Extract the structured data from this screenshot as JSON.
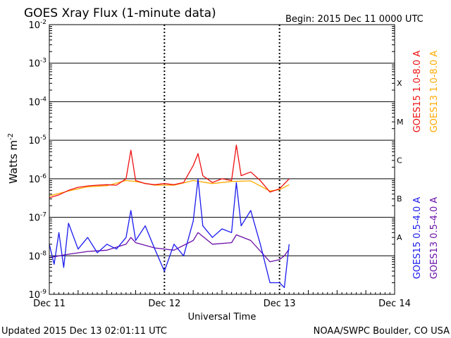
{
  "header": {
    "title": "GOES Xray Flux (1-minute data)",
    "begin": "Begin:  2015 Dec 11 0000 UTC"
  },
  "footer": {
    "updated": "Updated 2015 Dec 13 02:01:11 UTC",
    "credit": "NOAA/SWPC Boulder, CO USA"
  },
  "colors": {
    "goes15_long": "#ee1111",
    "goes13_long": "#ffaa00",
    "goes15_short": "#1a1aee",
    "goes13_short": "#6a0fa8"
  },
  "chart_data": {
    "type": "line",
    "xlabel": "Universal Time",
    "ylabel": "Watts m",
    "ylabel_superscript": "-2",
    "yscale": "log",
    "ylim": [
      1e-09,
      0.01
    ],
    "xlim": [
      "2015-12-11 00:00",
      "2015-12-14 00:00"
    ],
    "x_ticks": [
      "Dec 11",
      "Dec 12",
      "Dec 13",
      "Dec 14"
    ],
    "y_ticks": [
      {
        "base": "10",
        "exp": "-9"
      },
      {
        "base": "10",
        "exp": "-8"
      },
      {
        "base": "10",
        "exp": "-7"
      },
      {
        "base": "10",
        "exp": "-6"
      },
      {
        "base": "10",
        "exp": "-5"
      },
      {
        "base": "10",
        "exp": "-4"
      },
      {
        "base": "10",
        "exp": "-3"
      },
      {
        "base": "10",
        "exp": "-2"
      }
    ],
    "flare_classes": [
      "A",
      "B",
      "C",
      "M",
      "X"
    ],
    "grid": true,
    "legend": "right",
    "series": [
      {
        "name": "GOES15 1.0-8.0 A",
        "x": [
          "Dec 11 00:00",
          "Dec 11 02:00",
          "Dec 11 04:00",
          "Dec 11 06:00",
          "Dec 11 08:00",
          "Dec 11 10:00",
          "Dec 11 12:00",
          "Dec 11 14:00",
          "Dec 11 16:00",
          "Dec 11 17:00",
          "Dec 11 18:00",
          "Dec 11 20:00",
          "Dec 11 22:00",
          "Dec 12 00:00",
          "Dec 12 02:00",
          "Dec 12 04:00",
          "Dec 12 06:00",
          "Dec 12 07:00",
          "Dec 12 08:00",
          "Dec 12 10:00",
          "Dec 12 12:00",
          "Dec 12 14:00",
          "Dec 12 15:00",
          "Dec 12 16:00",
          "Dec 12 18:00",
          "Dec 12 20:00",
          "Dec 12 22:00",
          "Dec 13 00:00",
          "Dec 13 02:00"
        ],
        "values": [
          3.2e-07,
          3.8e-07,
          5e-07,
          6e-07,
          6.5e-07,
          6.8e-07,
          7e-07,
          6.8e-07,
          1e-06,
          5.5e-06,
          9e-07,
          7.5e-07,
          7e-07,
          7.5e-07,
          7e-07,
          8e-07,
          2.2e-06,
          4.5e-06,
          1.2e-06,
          8e-07,
          1e-06,
          9e-07,
          7.5e-06,
          1.2e-06,
          1.5e-06,
          9e-07,
          4.5e-07,
          5.5e-07,
          1e-06
        ]
      },
      {
        "name": "GOES13 1.0-8.0 A",
        "x": [
          "Dec 11 00:00",
          "Dec 11 04:00",
          "Dec 11 08:00",
          "Dec 11 12:00",
          "Dec 11 16:00",
          "Dec 11 18:00",
          "Dec 11 22:00",
          "Dec 12 02:00",
          "Dec 12 06:00",
          "Dec 12 10:00",
          "Dec 12 14:00",
          "Dec 12 18:00",
          "Dec 12 22:00",
          "Dec 13 00:00",
          "Dec 13 02:00"
        ],
        "values": [
          3.6e-07,
          4.8e-07,
          6.2e-07,
          6.6e-07,
          9e-07,
          8.5e-07,
          6.8e-07,
          6.8e-07,
          9e-07,
          7.5e-07,
          8.5e-07,
          8.8e-07,
          4.8e-07,
          5.2e-07,
          7e-07
        ]
      },
      {
        "name": "GOES15 0.5-4.0 A",
        "x": [
          "Dec 11 00:00",
          "Dec 11 01:00",
          "Dec 11 02:00",
          "Dec 11 03:00",
          "Dec 11 04:00",
          "Dec 11 06:00",
          "Dec 11 08:00",
          "Dec 11 10:00",
          "Dec 11 12:00",
          "Dec 11 14:00",
          "Dec 11 16:00",
          "Dec 11 17:00",
          "Dec 11 18:00",
          "Dec 11 20:00",
          "Dec 11 22:00",
          "Dec 12 00:00",
          "Dec 12 02:00",
          "Dec 12 04:00",
          "Dec 12 06:00",
          "Dec 12 07:00",
          "Dec 12 08:00",
          "Dec 12 10:00",
          "Dec 12 12:00",
          "Dec 12 14:00",
          "Dec 12 15:00",
          "Dec 12 16:00",
          "Dec 12 18:00",
          "Dec 12 20:00",
          "Dec 12 22:00",
          "Dec 13 00:00",
          "Dec 13 01:00",
          "Dec 13 02:00"
        ],
        "values": [
          2e-08,
          6e-09,
          4e-08,
          5e-09,
          7e-08,
          1.5e-08,
          3e-08,
          1.2e-08,
          2e-08,
          1.5e-08,
          3e-08,
          1.5e-07,
          2.5e-08,
          6e-08,
          1.5e-08,
          4e-09,
          2e-08,
          1e-08,
          8e-08,
          1e-06,
          6e-08,
          3e-08,
          5e-08,
          4e-08,
          8e-07,
          6e-08,
          1.5e-07,
          2e-08,
          2e-09,
          2e-09,
          1.5e-09,
          2e-08
        ]
      },
      {
        "name": "GOES13 0.5-4.0 A",
        "x": [
          "Dec 11 00:00",
          "Dec 11 04:00",
          "Dec 11 08:00",
          "Dec 11 12:00",
          "Dec 11 16:00",
          "Dec 11 17:00",
          "Dec 11 18:00",
          "Dec 11 22:00",
          "Dec 12 02:00",
          "Dec 12 06:00",
          "Dec 12 07:00",
          "Dec 12 10:00",
          "Dec 12 14:00",
          "Dec 12 15:00",
          "Dec 12 18:00",
          "Dec 12 22:00",
          "Dec 13 00:00",
          "Dec 13 01:00",
          "Dec 13 02:00"
        ],
        "values": [
          9e-09,
          1.1e-08,
          1.3e-08,
          1.4e-08,
          2e-08,
          3e-08,
          2.2e-08,
          1.6e-08,
          1.4e-08,
          2.5e-08,
          4e-08,
          2e-08,
          2.2e-08,
          3.5e-08,
          2.5e-08,
          7e-09,
          8e-09,
          1e-08,
          1.5e-08
        ]
      }
    ]
  }
}
